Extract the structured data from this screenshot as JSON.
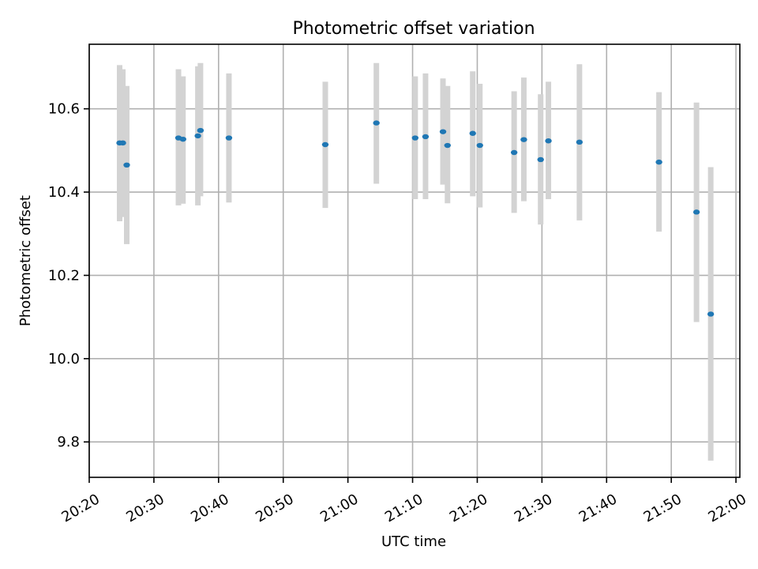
{
  "chart_data": {
    "type": "scatter",
    "title": "Photometric offset variation",
    "xlabel": "UTC time",
    "ylabel": "Photometric offset",
    "x_axis": {
      "kind": "time",
      "min": "20:20",
      "max": "22:00.6",
      "ticks": [
        "20:20",
        "20:30",
        "20:40",
        "20:50",
        "21:00",
        "21:10",
        "21:20",
        "21:30",
        "21:40",
        "21:50",
        "22:00"
      ]
    },
    "y_axis": {
      "min": 9.715,
      "max": 10.755,
      "ticks": [
        "9.8",
        "10.0",
        "10.2",
        "10.4",
        "10.6"
      ]
    },
    "grid": true,
    "points": [
      {
        "t": "20:24.7",
        "y": 10.518,
        "lo": 10.33,
        "hi": 10.705
      },
      {
        "t": "20:25.2",
        "y": 10.518,
        "lo": 10.34,
        "hi": 10.695
      },
      {
        "t": "20:25.8",
        "y": 10.465,
        "lo": 10.275,
        "hi": 10.655
      },
      {
        "t": "20:33.8",
        "y": 10.53,
        "lo": 10.368,
        "hi": 10.695
      },
      {
        "t": "20:34.5",
        "y": 10.527,
        "lo": 10.372,
        "hi": 10.678
      },
      {
        "t": "20:36.8",
        "y": 10.535,
        "lo": 10.368,
        "hi": 10.702
      },
      {
        "t": "20:37.2",
        "y": 10.548,
        "lo": 10.39,
        "hi": 10.71
      },
      {
        "t": "20:41.6",
        "y": 10.53,
        "lo": 10.375,
        "hi": 10.685
      },
      {
        "t": "20:56.5",
        "y": 10.514,
        "lo": 10.362,
        "hi": 10.665
      },
      {
        "t": "21:04.4",
        "y": 10.566,
        "lo": 10.42,
        "hi": 10.71
      },
      {
        "t": "21:10.4",
        "y": 10.53,
        "lo": 10.383,
        "hi": 10.678
      },
      {
        "t": "21:12.0",
        "y": 10.533,
        "lo": 10.383,
        "hi": 10.685
      },
      {
        "t": "21:14.7",
        "y": 10.545,
        "lo": 10.418,
        "hi": 10.673
      },
      {
        "t": "21:15.4",
        "y": 10.512,
        "lo": 10.373,
        "hi": 10.655
      },
      {
        "t": "21:19.3",
        "y": 10.541,
        "lo": 10.39,
        "hi": 10.69
      },
      {
        "t": "21:20.4",
        "y": 10.512,
        "lo": 10.363,
        "hi": 10.66
      },
      {
        "t": "21:25.7",
        "y": 10.495,
        "lo": 10.35,
        "hi": 10.642
      },
      {
        "t": "21:27.2",
        "y": 10.526,
        "lo": 10.378,
        "hi": 10.675
      },
      {
        "t": "21:29.8",
        "y": 10.478,
        "lo": 10.322,
        "hi": 10.635
      },
      {
        "t": "21:31.0",
        "y": 10.523,
        "lo": 10.383,
        "hi": 10.665
      },
      {
        "t": "21:35.8",
        "y": 10.52,
        "lo": 10.332,
        "hi": 10.707
      },
      {
        "t": "21:48.1",
        "y": 10.472,
        "lo": 10.305,
        "hi": 10.64
      },
      {
        "t": "21:53.9",
        "y": 10.352,
        "lo": 10.088,
        "hi": 10.615
      },
      {
        "t": "21:56.1",
        "y": 10.107,
        "lo": 9.755,
        "hi": 10.46
      }
    ]
  },
  "colors": {
    "point": "#1f77b4",
    "errorbar": "#d3d3d3",
    "grid": "#b0b0b0"
  }
}
